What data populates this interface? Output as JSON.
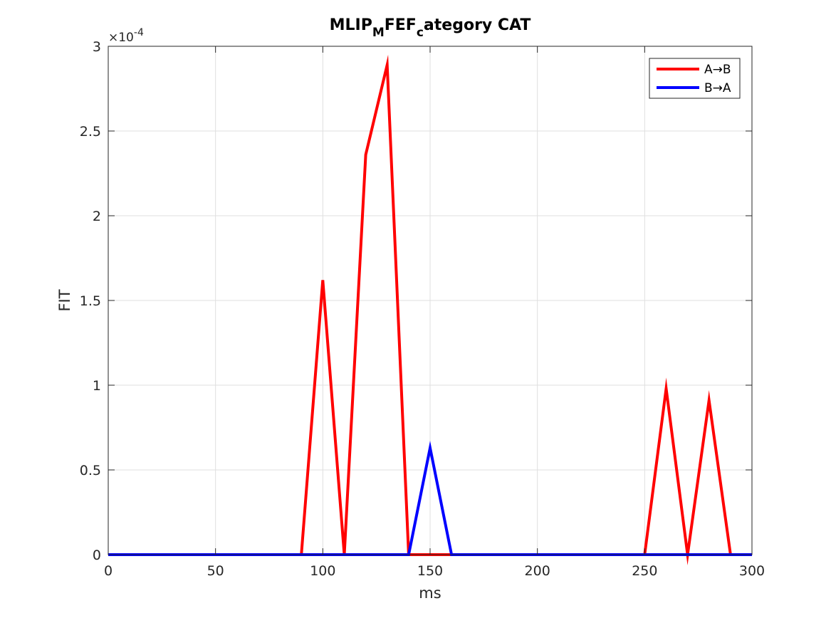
{
  "chart_data": {
    "type": "line",
    "title": {
      "parts": [
        {
          "text": "MLIP",
          "sub": false
        },
        {
          "text": "M",
          "sub": true
        },
        {
          "text": "FEF",
          "sub": false
        },
        {
          "text": "c",
          "sub": true
        },
        {
          "text": "ategory CAT",
          "sub": false
        }
      ]
    },
    "xlabel": "ms",
    "ylabel": "FIT",
    "y_exponent_label": "×10",
    "y_exponent_power": "-4",
    "xlim": [
      0,
      300
    ],
    "ylim": [
      0,
      3
    ],
    "xticks": [
      0,
      50,
      100,
      150,
      200,
      250,
      300
    ],
    "xtick_labels": [
      "0",
      "50",
      "100",
      "150",
      "200",
      "250",
      "300"
    ],
    "yticks": [
      0,
      0.5,
      1,
      1.5,
      2,
      2.5,
      3
    ],
    "ytick_labels": [
      "0",
      "0.5",
      "1",
      "1.5",
      "2",
      "2.5",
      "3"
    ],
    "grid": true,
    "legend_position": "top-right",
    "x": [
      0,
      10,
      20,
      30,
      40,
      50,
      60,
      70,
      80,
      90,
      100,
      110,
      120,
      130,
      140,
      150,
      160,
      170,
      180,
      190,
      200,
      210,
      220,
      230,
      240,
      250,
      260,
      270,
      280,
      290,
      300
    ],
    "series": [
      {
        "name": "A→B",
        "color": "#ff0000",
        "values": [
          0,
          0,
          0,
          0,
          0,
          0,
          0,
          0,
          0,
          0,
          1.62,
          0,
          2.36,
          2.89,
          0,
          0,
          0,
          0,
          0,
          0,
          0,
          0,
          0,
          0,
          0,
          0,
          0.98,
          0,
          0.91,
          0,
          0
        ]
      },
      {
        "name": "B→A",
        "color": "#0000ff",
        "values": [
          0,
          0,
          0,
          0,
          0,
          0,
          0,
          0,
          0,
          0,
          0,
          0,
          0,
          0,
          0,
          0.63,
          0,
          0,
          0,
          0,
          0,
          0,
          0,
          0,
          0,
          0,
          0,
          0,
          0,
          0,
          0
        ]
      }
    ]
  }
}
